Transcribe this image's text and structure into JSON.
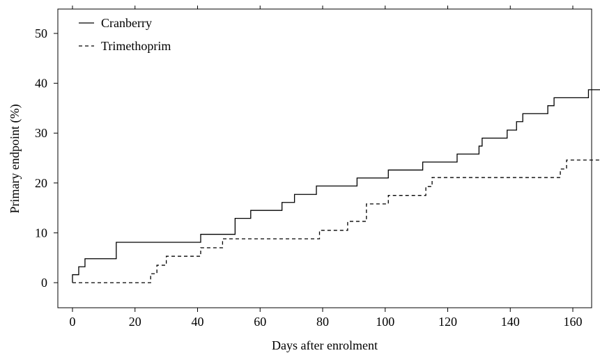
{
  "chart_data": {
    "type": "line",
    "step": true,
    "title": "",
    "xlabel": "Days after enrolment",
    "ylabel": "Primary endpoint (%)",
    "xlim": [
      -3,
      170
    ],
    "ylim": [
      -5,
      54
    ],
    "xticks": [
      0,
      20,
      40,
      60,
      80,
      100,
      120,
      140,
      160
    ],
    "yticks": [
      0,
      10,
      20,
      30,
      40,
      50
    ],
    "grid": false,
    "legend_position": "top-left",
    "series": [
      {
        "name": "Cranberry",
        "line_style": "solid",
        "color": "#000000",
        "x": [
          0,
          2,
          3,
          4,
          14,
          41,
          52,
          57,
          67,
          71,
          78,
          91,
          101,
          112,
          123,
          130,
          131,
          139,
          142,
          144,
          152,
          154,
          165,
          170
        ],
        "y": [
          1.6,
          3.2,
          3.2,
          4.8,
          8.1,
          9.7,
          12.9,
          14.5,
          16.1,
          17.7,
          19.4,
          21.0,
          22.6,
          24.2,
          25.8,
          27.4,
          29.0,
          30.6,
          32.3,
          33.9,
          35.5,
          37.1,
          38.7,
          38.7
        ]
      },
      {
        "name": "Trimethoprim",
        "line_style": "dashed",
        "color": "#000000",
        "x": [
          0,
          25,
          27,
          28,
          30,
          41,
          48,
          79,
          88,
          94,
          101,
          113,
          115,
          156,
          158,
          170
        ],
        "y": [
          0,
          1.8,
          3.5,
          3.5,
          5.3,
          7.0,
          8.8,
          10.5,
          12.3,
          15.8,
          17.5,
          19.3,
          21.1,
          22.8,
          24.6,
          24.6
        ]
      }
    ]
  }
}
